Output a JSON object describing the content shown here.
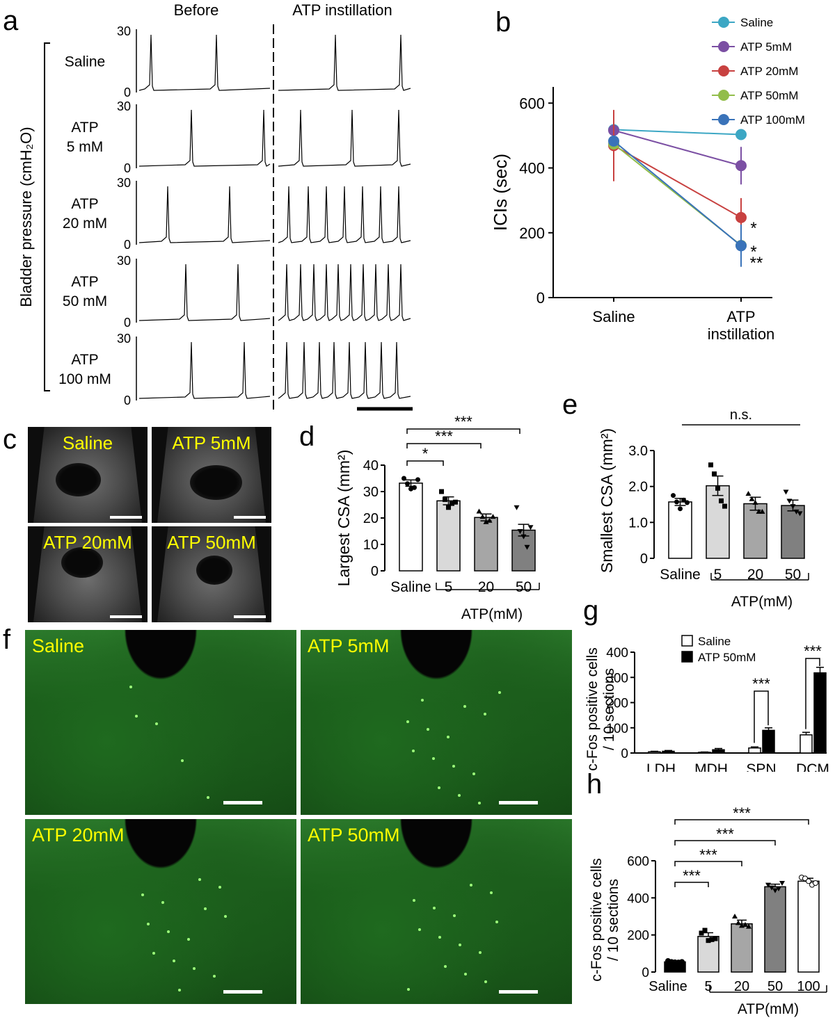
{
  "panel_letters": {
    "a": "a",
    "b": "b",
    "c": "c",
    "d": "d",
    "e": "e",
    "f": "f",
    "g": "g",
    "h": "h"
  },
  "panel_a": {
    "col_before": "Before",
    "col_atp": "ATP instillation",
    "ylabel": "Bladder pressure (cmH₂O)",
    "rows": [
      {
        "label_lines": [
          "Saline"
        ],
        "ytop": "30",
        "ybottom": "0"
      },
      {
        "label_lines": [
          "ATP",
          "5 mM"
        ],
        "ytop": "30",
        "ybottom": "0"
      },
      {
        "label_lines": [
          "ATP",
          "20 mM"
        ],
        "ytop": "30",
        "ybottom": "0"
      },
      {
        "label_lines": [
          "ATP",
          "50 mM"
        ],
        "ytop": "30",
        "ybottom": "0"
      },
      {
        "label_lines": [
          "ATP",
          "100 mM"
        ],
        "ytop": "30",
        "ybottom": "0"
      }
    ],
    "trace_color": "#000000"
  },
  "chart_data": [
    {
      "panel": "b",
      "type": "line",
      "categories": [
        "Saline",
        "ATP\ninstillation"
      ],
      "ylabel": "ICIs (sec)",
      "ylim": [
        0,
        600
      ],
      "yticks": [
        0,
        200,
        400,
        600
      ],
      "series": [
        {
          "name": "Saline",
          "color": "#3ca7c4",
          "values": [
            518,
            503
          ],
          "err": [
            0,
            0
          ]
        },
        {
          "name": "ATP 5mM",
          "color": "#7b4fa3",
          "values": [
            516,
            407
          ],
          "err": [
            0,
            58
          ]
        },
        {
          "name": "ATP 20mM",
          "color": "#c84140",
          "values": [
            469,
            247
          ],
          "err": [
            110,
            60
          ]
        },
        {
          "name": "ATP 50mM",
          "color": "#92bd4a",
          "values": [
            474,
            161
          ],
          "err": [
            0,
            0
          ]
        },
        {
          "name": "ATP 100mM",
          "color": "#3a73b9",
          "values": [
            483,
            160
          ],
          "err": [
            0,
            65
          ]
        }
      ],
      "annotations": [
        "*",
        "*",
        "**"
      ],
      "legend": "top-right"
    },
    {
      "panel": "d",
      "type": "bar",
      "categories": [
        "Saline",
        "5",
        "20",
        "50"
      ],
      "values": [
        33.2,
        26.5,
        20.2,
        15.4
      ],
      "err": [
        1.2,
        1.5,
        1.3,
        2.2
      ],
      "points": [
        [
          35,
          33,
          31,
          31.5,
          34.5
        ],
        [
          30,
          27,
          24,
          25.5,
          26
        ],
        [
          22.5,
          20.5,
          18.5,
          19,
          20.5
        ],
        [
          24,
          15,
          13,
          9,
          16.5
        ]
      ],
      "bar_colors": [
        "#ffffff",
        "#d9d9d9",
        "#a6a6a6",
        "#808080"
      ],
      "ylabel": "Largest CSA (mm²)",
      "ylim": [
        0,
        40
      ],
      "yticks": [
        0,
        10,
        20,
        30,
        40
      ],
      "group_label": "ATP(mM)",
      "significance": [
        "*",
        "***",
        "***"
      ]
    },
    {
      "panel": "e",
      "type": "bar",
      "categories": [
        "Saline",
        "5",
        "20",
        "50"
      ],
      "values": [
        1.57,
        2.02,
        1.52,
        1.47
      ],
      "err": [
        0.1,
        0.27,
        0.18,
        0.15
      ],
      "points": [
        [
          1.75,
          1.57,
          1.38,
          1.62,
          1.55
        ],
        [
          2.6,
          2.35,
          1.95,
          1.6,
          1.45
        ],
        [
          1.8,
          1.65,
          1.55,
          1.3,
          1.3
        ],
        [
          1.85,
          1.6,
          1.45,
          1.3,
          1.25
        ]
      ],
      "bar_colors": [
        "#ffffff",
        "#d9d9d9",
        "#a6a6a6",
        "#808080"
      ],
      "ylabel": "Smallest CSA (mm²)",
      "ylim": [
        0,
        3.0
      ],
      "yticks": [
        "0",
        "1.0",
        "2.0",
        "3.0"
      ],
      "group_label": "ATP(mM)",
      "significance": [
        "n.s."
      ]
    },
    {
      "panel": "g",
      "type": "bar",
      "categories": [
        "LDH",
        "MDH",
        "SPN",
        "DCM"
      ],
      "series": [
        {
          "name": "Saline",
          "color": "#ffffff",
          "values": [
            5,
            3,
            20,
            72
          ],
          "err": [
            2,
            1,
            4,
            10
          ]
        },
        {
          "name": "ATP 50mM",
          "color": "#000000",
          "values": [
            7,
            13,
            90,
            318
          ],
          "err": [
            3,
            5,
            10,
            22
          ]
        }
      ],
      "ylabel": "c-Fos positive cells / 10 sections",
      "ylim": [
        0,
        400
      ],
      "yticks": [
        0,
        100,
        200,
        300,
        400
      ],
      "significance": [
        "***",
        "***"
      ],
      "legend": "top-left"
    },
    {
      "panel": "h",
      "type": "bar",
      "categories": [
        "Saline",
        "5",
        "20",
        "50",
        "100"
      ],
      "values": [
        55,
        192,
        260,
        460,
        490
      ],
      "err": [
        5,
        20,
        20,
        14,
        16
      ],
      "points": [
        [
          60,
          55,
          53,
          52,
          55
        ],
        [
          210,
          225,
          170,
          175,
          180
        ],
        [
          300,
          265,
          250,
          255,
          245
        ],
        [
          470,
          455,
          440,
          450,
          480
        ],
        [
          510,
          505,
          490,
          470,
          480
        ]
      ],
      "bar_colors": [
        "#000000",
        "#d9d9d9",
        "#a6a6a6",
        "#808080",
        "#ffffff"
      ],
      "ylabel": "c-Fos positive cells / 10 sections",
      "ylim": [
        0,
        600
      ],
      "yticks": [
        0,
        200,
        400,
        600
      ],
      "group_label": "ATP(mM)",
      "significance": [
        "***",
        "***",
        "***",
        "***"
      ]
    }
  ],
  "panel_c": {
    "tiles": [
      "Saline",
      "ATP 5mM",
      "ATP 20mM",
      "ATP 50mM"
    ]
  },
  "panel_f": {
    "tiles": [
      "Saline",
      "ATP 5mM",
      "ATP 20mM",
      "ATP 50mM"
    ]
  }
}
